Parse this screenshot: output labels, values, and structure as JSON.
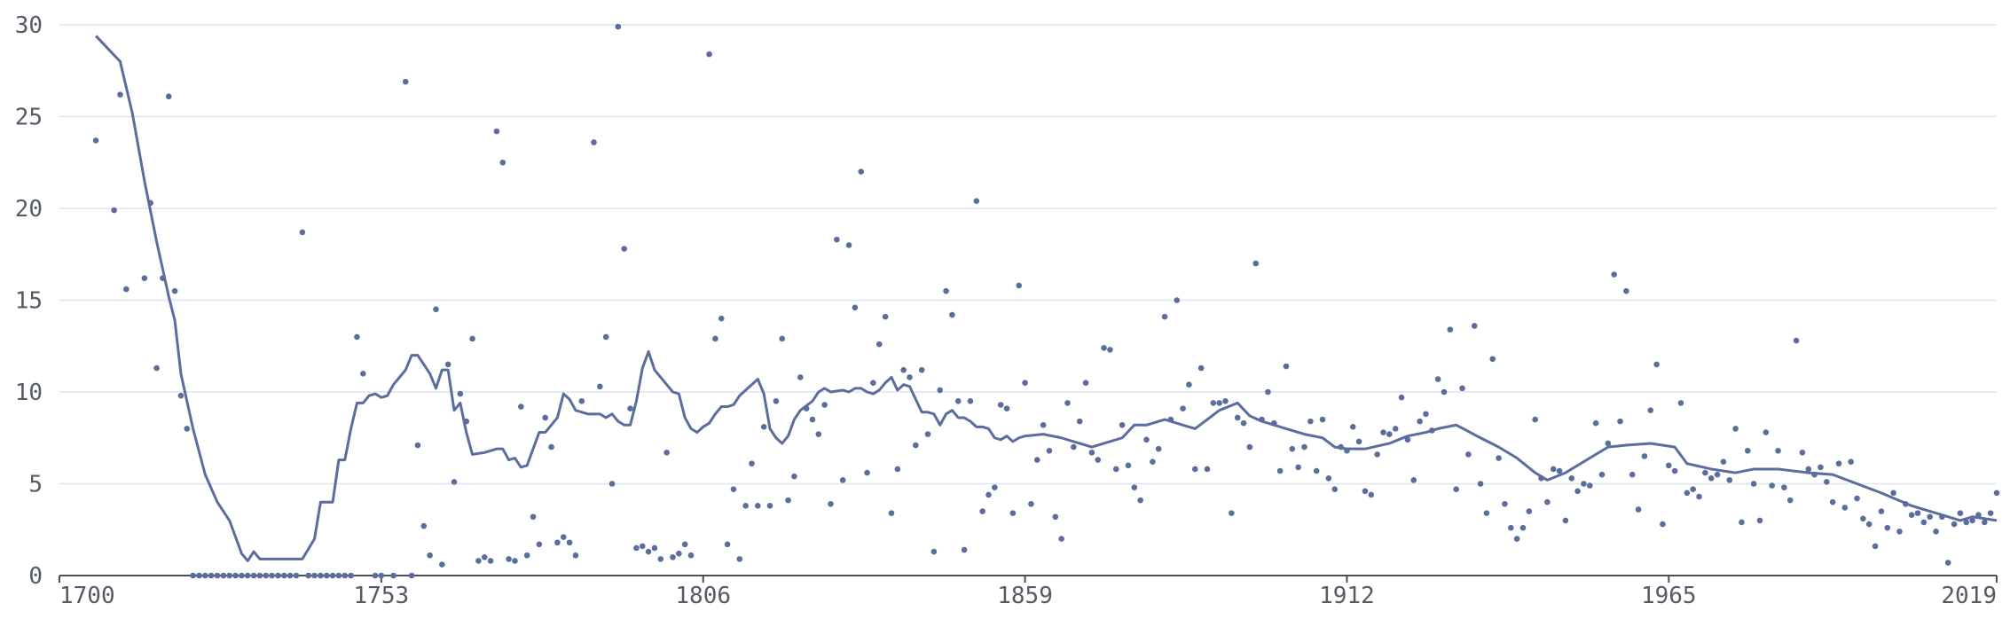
{
  "chart_data": {
    "type": "scatter",
    "xlim": [
      1700,
      2019
    ],
    "xticks": [
      1700,
      1753,
      1806,
      1859,
      1912,
      1965,
      2019
    ],
    "ylim": [
      0,
      30
    ],
    "yticks": [
      0,
      5,
      10,
      15,
      20,
      25,
      30
    ],
    "grid": true,
    "series": [
      {
        "type": "scatter",
        "color": "#5a6d9c",
        "x": [
          1706,
          1709,
          1710,
          1711,
          1714,
          1715,
          1716,
          1717,
          1718,
          1719,
          1720,
          1721,
          1722,
          1723,
          1724,
          1725,
          1726,
          1727,
          1728,
          1729,
          1730,
          1731,
          1732,
          1733,
          1734,
          1735,
          1736,
          1737,
          1738,
          1739,
          1740,
          1741,
          1742,
          1743,
          1744,
          1745,
          1746,
          1747,
          1748,
          1749,
          1750,
          1752,
          1753,
          1755,
          1757,
          1758,
          1759,
          1760,
          1761,
          1762,
          1763,
          1764,
          1765,
          1766,
          1767,
          1768,
          1769,
          1770,
          1771,
          1772,
          1773,
          1774,
          1775,
          1776,
          1777,
          1778,
          1779,
          1780,
          1781,
          1782,
          1783,
          1784,
          1785,
          1786,
          1788,
          1789,
          1790,
          1791,
          1792,
          1793,
          1794,
          1795,
          1796,
          1797,
          1798,
          1799,
          1800,
          1801,
          1802,
          1803,
          1804,
          1807,
          1808,
          1809,
          1810,
          1811,
          1812,
          1813,
          1814,
          1815,
          1816,
          1817,
          1818,
          1819,
          1820,
          1821,
          1822,
          1823,
          1824,
          1825,
          1826,
          1827,
          1828,
          1829,
          1830,
          1831,
          1832,
          1833,
          1834,
          1835,
          1836,
          1837,
          1838,
          1839,
          1840,
          1841,
          1842,
          1843,
          1844,
          1845,
          1846,
          1847,
          1848,
          1849,
          1850,
          1851,
          1852,
          1853,
          1854,
          1855,
          1856,
          1857,
          1858,
          1859,
          1860,
          1861,
          1862,
          1863,
          1864,
          1865,
          1866,
          1867,
          1868,
          1869,
          1870,
          1871,
          1872,
          1873,
          1874,
          1875,
          1876,
          1877,
          1878,
          1879,
          1880,
          1881,
          1882,
          1883,
          1884,
          1885,
          1886,
          1887,
          1888,
          1889,
          1890,
          1891,
          1892,
          1893,
          1894,
          1895,
          1896,
          1897,
          1898,
          1899,
          1900,
          1901,
          1902,
          1903,
          1904,
          1905,
          1906,
          1907,
          1908,
          1909,
          1910,
          1911,
          1912,
          1913,
          1914,
          1915,
          1916,
          1917,
          1918,
          1919,
          1920,
          1921,
          1922,
          1923,
          1924,
          1925,
          1926,
          1927,
          1928,
          1929,
          1930,
          1931,
          1932,
          1933,
          1934,
          1935,
          1936,
          1937,
          1938,
          1939,
          1940,
          1941,
          1942,
          1943,
          1944,
          1945,
          1946,
          1947,
          1948,
          1949,
          1950,
          1951,
          1952,
          1953,
          1954,
          1955,
          1956,
          1957,
          1958,
          1959,
          1960,
          1961,
          1962,
          1963,
          1964,
          1965,
          1966,
          1967,
          1968,
          1969,
          1970,
          1971,
          1972,
          1973,
          1974,
          1975,
          1976,
          1977,
          1978,
          1979,
          1980,
          1981,
          1982,
          1983,
          1984,
          1985,
          1986,
          1987,
          1988,
          1989,
          1990,
          1991,
          1992,
          1993,
          1994,
          1995,
          1996,
          1997,
          1998,
          1999,
          2000,
          2001,
          2002,
          2003,
          2004,
          2005,
          2006,
          2007,
          2008,
          2009,
          2010,
          2011,
          2012,
          2013,
          2014,
          2015,
          2016,
          2017,
          2018,
          2019
        ],
        "values": [
          23.7,
          19.9,
          26.2,
          15.6,
          16.2,
          20.3,
          11.3,
          16.2,
          26.1,
          15.5,
          9.8,
          8.0,
          0,
          0,
          0,
          0,
          0,
          0,
          0,
          0,
          0,
          0,
          0,
          0,
          0,
          0,
          0,
          0,
          0,
          0,
          18.7,
          0,
          0,
          0,
          0,
          0,
          0,
          0,
          0,
          13.0,
          11.0,
          0,
          0,
          0,
          26.9,
          0,
          7.1,
          2.7,
          1.1,
          14.5,
          0.6,
          11.5,
          5.1,
          9.9,
          8.4,
          12.9,
          0.8,
          1.0,
          0.8,
          24.2,
          22.5,
          0.9,
          0.8,
          9.2,
          1.1,
          3.2,
          1.7,
          8.6,
          7.0,
          1.8,
          2.1,
          1.8,
          1.1,
          9.5,
          23.6,
          10.3,
          13.0,
          5.0,
          29.9,
          17.8,
          9.1,
          1.5,
          1.6,
          1.3,
          1.5,
          0.9,
          6.7,
          1.0,
          1.2,
          1.7,
          1.1,
          28.4,
          12.9,
          14.0,
          1.7,
          4.7,
          0.9,
          3.8,
          6.1,
          3.8,
          8.1,
          3.8,
          9.5,
          12.9,
          4.1,
          5.4,
          10.8,
          9.1,
          8.5,
          7.7,
          9.3,
          3.9,
          18.3,
          5.2,
          18.0,
          14.6,
          22.0,
          5.6,
          10.5,
          12.6,
          14.1,
          3.4,
          5.8,
          11.2,
          10.8,
          7.1,
          11.2,
          7.7,
          1.3,
          10.1,
          15.5,
          14.2,
          9.5,
          1.4,
          9.5,
          20.4,
          3.5,
          4.4,
          4.8,
          9.3,
          9.1,
          3.4,
          15.8,
          10.5,
          3.9,
          6.3,
          8.2,
          6.8,
          3.2,
          2.0,
          9.4,
          7.0,
          8.4,
          10.5,
          6.7,
          6.3,
          12.4,
          12.3,
          5.8,
          8.2,
          6.0,
          4.8,
          4.1,
          7.4,
          6.2,
          6.9,
          14.1,
          8.5,
          15.0,
          9.1,
          10.4,
          5.8,
          11.3,
          5.8,
          9.4,
          9.4,
          9.5,
          3.4,
          8.6,
          8.3,
          7.0,
          17.0,
          8.5,
          10.0,
          8.3,
          5.7,
          11.4,
          6.9,
          5.9,
          7.0,
          8.4,
          5.7,
          8.5,
          5.3,
          4.7,
          7.0,
          6.8,
          8.1,
          7.3,
          4.6,
          4.4,
          6.6,
          7.8,
          7.7,
          8.0,
          9.7,
          7.4,
          5.2,
          8.4,
          8.8,
          7.9,
          10.7,
          10.0,
          13.4,
          4.7,
          10.2,
          6.6,
          13.6,
          5.0,
          3.4,
          11.8,
          6.4,
          3.9,
          2.6,
          2.0,
          2.6,
          3.5,
          8.5,
          5.3,
          4.0,
          5.8,
          5.7,
          3.0,
          5.3,
          4.6,
          5.0,
          4.9,
          8.3,
          5.5,
          7.2,
          16.4,
          8.4,
          15.5,
          5.5,
          3.6,
          6.5,
          9.0,
          11.5,
          2.8,
          6.0,
          5.7,
          9.4,
          4.5,
          4.7,
          4.3,
          5.6,
          5.3,
          5.5,
          6.2,
          5.2,
          8.0,
          2.9,
          6.8,
          5.0,
          3.0,
          7.8,
          4.9,
          6.8,
          4.8,
          4.1,
          12.8,
          6.7,
          5.8,
          5.5,
          5.9,
          5.1,
          4.0,
          6.1,
          3.7,
          6.2,
          4.2,
          3.1,
          2.8,
          1.6,
          3.5,
          2.6,
          4.5,
          2.4,
          3.9,
          3.3,
          3.4,
          2.9,
          3.2,
          2.4,
          3.2,
          0.7,
          2.8,
          3.4,
          2.9,
          3.0,
          3.3,
          2.9,
          3.4,
          4.5
        ]
      },
      {
        "type": "line",
        "color": "#5a6d9c",
        "x": [
          1706,
          1708,
          1710,
          1712,
          1714,
          1716,
          1718,
          1719,
          1720,
          1722,
          1724,
          1726,
          1728,
          1730,
          1731,
          1732,
          1733,
          1740,
          1742,
          1743,
          1745,
          1746,
          1747,
          1748,
          1749,
          1750,
          1751,
          1752,
          1753,
          1754,
          1755,
          1757,
          1758,
          1759,
          1761,
          1762,
          1763,
          1764,
          1765,
          1766,
          1767,
          1768,
          1770,
          1772,
          1773,
          1774,
          1775,
          1776,
          1777,
          1779,
          1780,
          1782,
          1783,
          1784,
          1785,
          1787,
          1789,
          1790,
          1791,
          1792,
          1793,
          1794,
          1795,
          1796,
          1797,
          1798,
          1800,
          1801,
          1802,
          1803,
          1804,
          1805,
          1806,
          1807,
          1808,
          1809,
          1810,
          1811,
          1812,
          1814,
          1815,
          1816,
          1817,
          1818,
          1819,
          1820,
          1821,
          1822,
          1824,
          1825,
          1826,
          1827,
          1829,
          1830,
          1831,
          1832,
          1833,
          1834,
          1835,
          1836,
          1837,
          1838,
          1839,
          1840,
          1841,
          1842,
          1843,
          1844,
          1845,
          1846,
          1847,
          1848,
          1849,
          1850,
          1851,
          1852,
          1853,
          1854,
          1855,
          1856,
          1857,
          1858,
          1859,
          1862,
          1865,
          1867,
          1870,
          1872,
          1875,
          1877,
          1879,
          1882,
          1885,
          1887,
          1889,
          1891,
          1894,
          1896,
          1898,
          1902,
          1905,
          1908,
          1910,
          1912,
          1915,
          1919,
          1922,
          1925,
          1927,
          1930,
          1934,
          1937,
          1940,
          1943,
          1945,
          1948,
          1952,
          1955,
          1958,
          1962,
          1966,
          1968,
          1972,
          1976,
          1979,
          1983,
          1988,
          1992,
          1996,
          2000,
          2005,
          2009,
          2013,
          2015,
          2019
        ],
        "values": [
          29.4,
          28.7,
          28.0,
          25.2,
          21.5,
          18.2,
          15.2,
          13.9,
          11.0,
          8.0,
          5.5,
          4.0,
          3.0,
          1.2,
          0.8,
          1.3,
          0.9,
          0.9,
          2.0,
          4.0,
          4.0,
          6.3,
          6.3,
          8.0,
          9.4,
          9.4,
          9.8,
          9.9,
          9.7,
          9.8,
          10.4,
          11.2,
          12.0,
          12.0,
          11.0,
          10.2,
          11.2,
          11.2,
          9.0,
          9.4,
          7.8,
          6.6,
          6.7,
          6.9,
          6.9,
          6.3,
          6.4,
          5.9,
          6.0,
          7.8,
          7.8,
          8.6,
          9.9,
          9.6,
          9.0,
          8.8,
          8.8,
          8.6,
          8.8,
          8.4,
          8.2,
          8.2,
          9.5,
          11.3,
          12.2,
          11.2,
          10.4,
          10.0,
          9.9,
          8.6,
          8.0,
          7.8,
          8.1,
          8.3,
          8.8,
          9.2,
          9.2,
          9.3,
          9.8,
          10.4,
          10.7,
          9.9,
          8.0,
          7.5,
          7.2,
          7.6,
          8.5,
          9.0,
          9.5,
          10.0,
          10.2,
          10.0,
          10.1,
          10.0,
          10.2,
          10.2,
          10.0,
          9.9,
          10.1,
          10.5,
          10.8,
          10.1,
          10.4,
          10.3,
          9.6,
          8.9,
          8.9,
          8.8,
          8.2,
          8.8,
          9.0,
          8.6,
          8.6,
          8.4,
          8.1,
          8.1,
          8.0,
          7.5,
          7.4,
          7.6,
          7.3,
          7.5,
          7.6,
          7.7,
          7.5,
          7.3,
          7.0,
          7.2,
          7.5,
          8.2,
          8.2,
          8.5,
          8.2,
          8.0,
          8.5,
          9.0,
          9.4,
          8.7,
          8.4,
          8.0,
          7.7,
          7.5,
          7.0,
          6.9,
          6.9,
          7.2,
          7.6,
          7.8,
          8.0,
          8.2,
          7.5,
          7.0,
          6.4,
          5.6,
          5.2,
          5.6,
          6.4,
          7.0,
          7.1,
          7.2,
          7.0,
          6.1,
          5.8,
          5.6,
          5.8,
          5.8,
          5.6,
          5.5,
          5.0,
          4.5,
          3.8,
          3.4,
          3.0,
          3.2,
          3.0
        ]
      }
    ]
  }
}
